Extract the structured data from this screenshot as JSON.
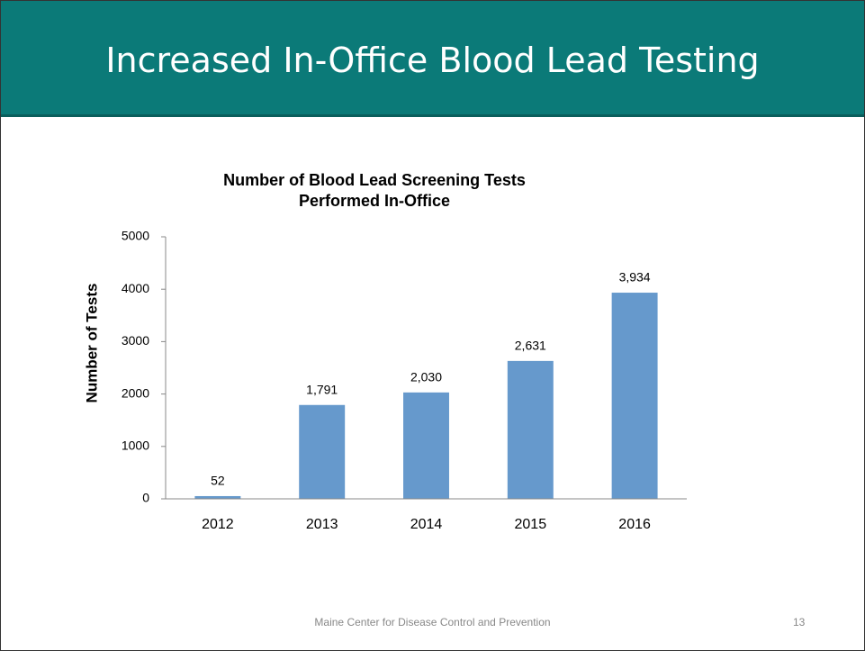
{
  "slide_title": "Increased In-Office Blood Lead Testing",
  "chart_data": {
    "type": "bar",
    "title": "Number of Blood Lead Screening Tests Performed In-Office",
    "ylabel": "Number of Tests",
    "categories": [
      "2012",
      "2013",
      "2014",
      "2015",
      "2016"
    ],
    "values": [
      52,
      1791,
      2030,
      2631,
      3934
    ],
    "value_labels": [
      "52",
      "1,791",
      "2,030",
      "2,631",
      "3,934"
    ],
    "color": "#6699cc",
    "ylim": [
      0,
      5000
    ],
    "yticks": [
      0,
      1000,
      2000,
      3000,
      4000,
      5000
    ],
    "grid": false
  },
  "footer": "Maine Center for Disease Control and Prevention",
  "page_number": "13"
}
